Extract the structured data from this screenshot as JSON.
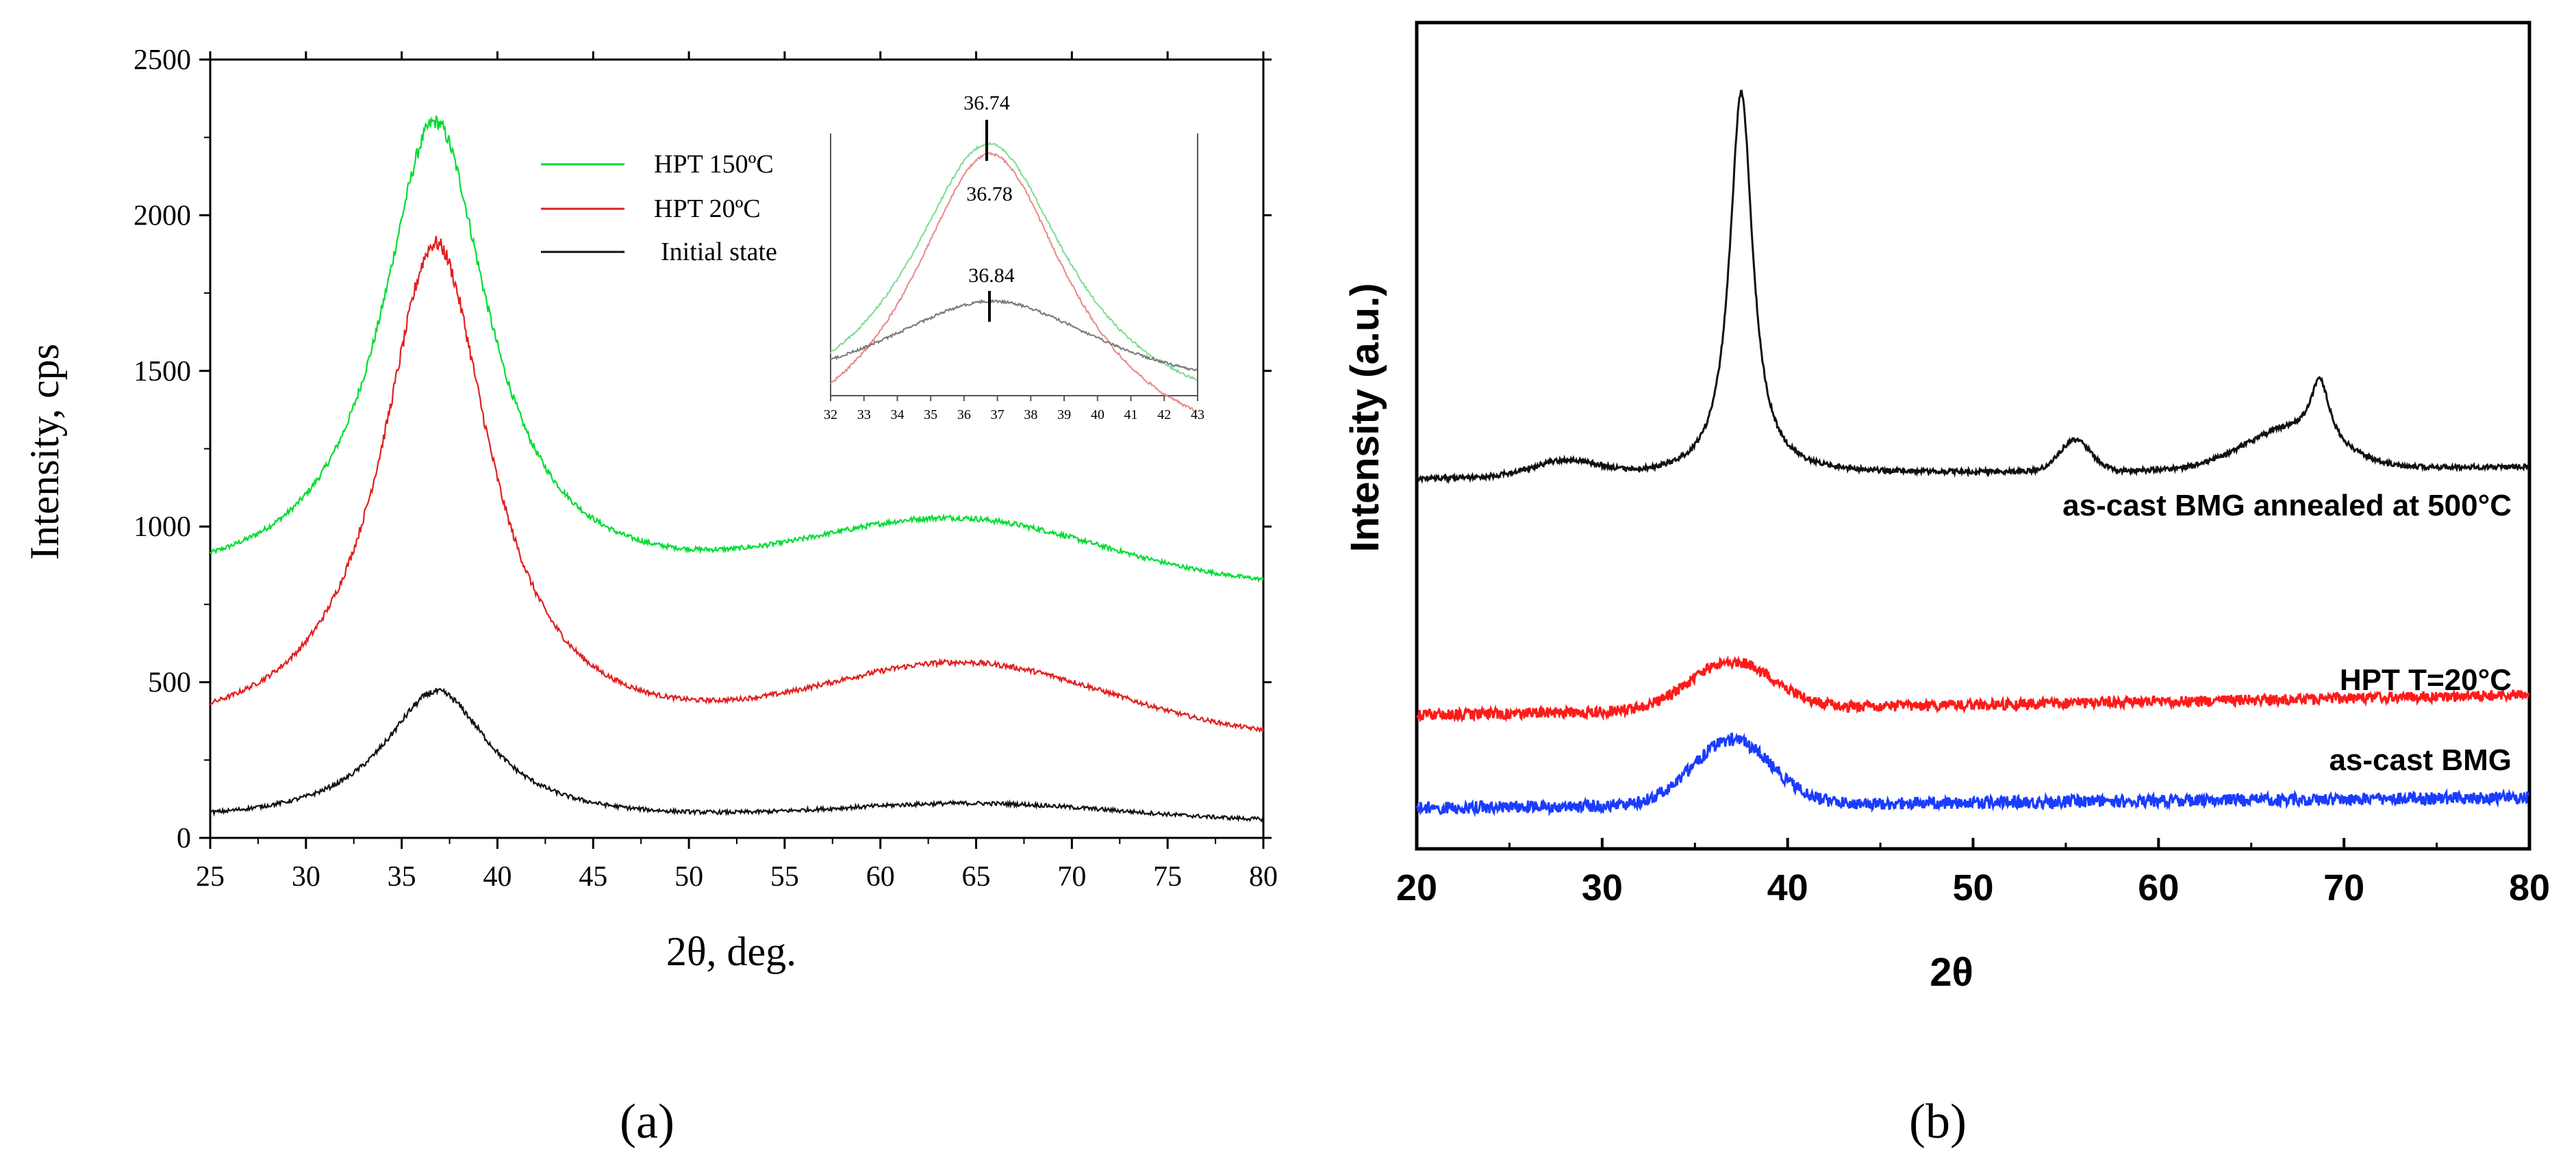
{
  "chart_data": [
    {
      "panel": "(a)",
      "type": "line",
      "xlabel": "2θ, deg.",
      "ylabel": "Intensity, cps",
      "xlim": [
        25,
        80
      ],
      "ylim": [
        0,
        2500
      ],
      "xticks": [
        "25",
        "30",
        "35",
        "40",
        "45",
        "50",
        "55",
        "60",
        "65",
        "70",
        "75",
        "80"
      ],
      "yticks": [
        "0",
        "500",
        "1000",
        "1500",
        "2000",
        "2500"
      ],
      "legend_position": "top-center",
      "series": [
        {
          "name": "HPT 150ºC",
          "color": "#00dd33",
          "base": 800,
          "peak1_center": 36.74,
          "peak1_height": 2300,
          "peak2_center": 64,
          "peak2_height": 1005,
          "end_value": 790
        },
        {
          "name": "HPT 20ºC",
          "color": "#e02020",
          "base": 310,
          "peak1_center": 36.78,
          "peak1_height": 1910,
          "peak2_center": 64.5,
          "peak2_height": 540,
          "end_value": 300
        },
        {
          "name": "Initial state",
          "color": "#111111",
          "base": 50,
          "peak1_center": 36.84,
          "peak1_height": 470,
          "peak2_center": 65,
          "peak2_height": 105,
          "end_value": 50
        }
      ],
      "inset": {
        "xlim": [
          32,
          43
        ],
        "xticks": [
          "32",
          "33",
          "34",
          "35",
          "36",
          "37",
          "38",
          "39",
          "40",
          "41",
          "42",
          "43"
        ],
        "peak_labels": [
          "36.74",
          "36.78",
          "36.84"
        ]
      }
    },
    {
      "panel": "(b)",
      "type": "line",
      "xlabel": "2θ",
      "ylabel": "Intensity (a.u.)",
      "xlim": [
        20,
        80
      ],
      "xticks": [
        "20",
        "30",
        "40",
        "50",
        "60",
        "70",
        "80"
      ],
      "series": [
        {
          "name": "as-cast BMG annealed at 500°C",
          "color": "#111111",
          "peaks": [
            28,
            37.5,
            55.5,
            68.7
          ],
          "main_peak_center": 37.5
        },
        {
          "name": "HPT T=20°C",
          "color": "#ff1a1a",
          "peaks": [
            37
          ]
        },
        {
          "name": "as-cast BMG",
          "color": "#1a3cff",
          "peaks": [
            37
          ]
        }
      ]
    }
  ]
}
